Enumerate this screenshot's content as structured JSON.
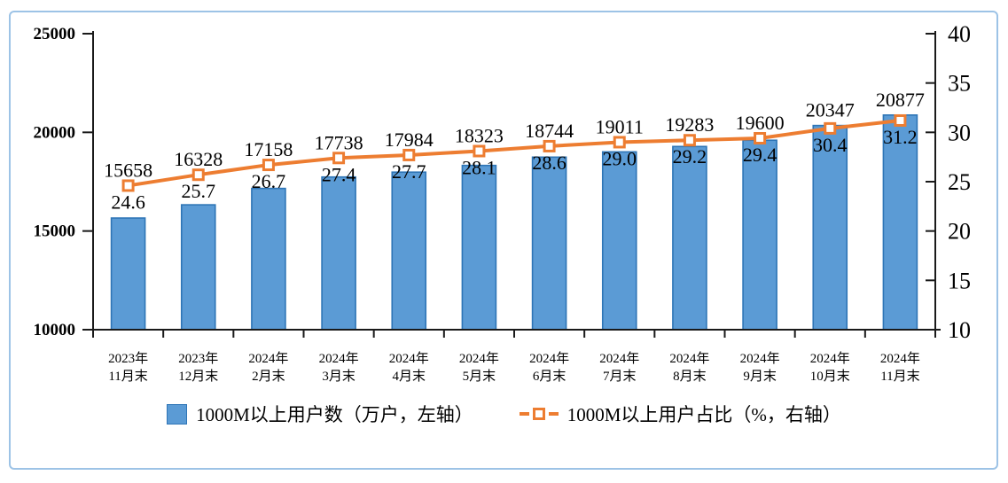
{
  "frame": {
    "border_color": "#9DC3E6",
    "background": "#FFFFFF"
  },
  "chart_data": {
    "type": "combo-bar-line",
    "title": "",
    "categories": [
      [
        "2023年",
        "11月末"
      ],
      [
        "2023年",
        "12月末"
      ],
      [
        "2024年",
        "2月末"
      ],
      [
        "2024年",
        "3月末"
      ],
      [
        "2024年",
        "4月末"
      ],
      [
        "2024年",
        "5月末"
      ],
      [
        "2024年",
        "6月末"
      ],
      [
        "2024年",
        "7月末"
      ],
      [
        "2024年",
        "8月末"
      ],
      [
        "2024年",
        "9月末"
      ],
      [
        "2024年",
        "10月末"
      ],
      [
        "2024年",
        "11月末"
      ]
    ],
    "series": [
      {
        "name": "1000M以上用户数（万户，左轴）",
        "type": "bar",
        "axis": "left",
        "values": [
          15658,
          16328,
          17158,
          17738,
          17984,
          18323,
          18744,
          19011,
          19283,
          19600,
          20347,
          20877
        ],
        "labels": [
          "15658",
          "16328",
          "17158",
          "17738",
          "17984",
          "18323",
          "18744",
          "19011",
          "19283",
          "19600",
          "20347",
          "20877"
        ],
        "fill": "#5B9BD5",
        "stroke": "#2E75B6"
      },
      {
        "name": "1000M以上用户占比（%，右轴）",
        "type": "line",
        "axis": "right",
        "values": [
          24.6,
          25.7,
          26.7,
          27.4,
          27.7,
          28.1,
          28.6,
          29.0,
          29.2,
          29.4,
          30.4,
          31.2
        ],
        "labels": [
          "24.6",
          "25.7",
          "26.7",
          "27.4",
          "27.7",
          "28.1",
          "28.6",
          "29.0",
          "29.2",
          "29.4",
          "30.4",
          "31.2"
        ],
        "color": "#ED7D31",
        "marker": "square",
        "marker_fill": "#FFFFFF"
      }
    ],
    "left_axis": {
      "min": 10000,
      "max": 25000,
      "tick_step": 5000,
      "tick_labels": [
        "10000",
        "15000",
        "20000",
        "25000"
      ]
    },
    "right_axis": {
      "min": 10,
      "max": 40,
      "tick_step": 5,
      "tick_labels": [
        "10",
        "15",
        "20",
        "25",
        "30",
        "35",
        "40"
      ]
    },
    "axis_color": "#1a1a1a",
    "grid": false,
    "legend_position": "bottom"
  }
}
